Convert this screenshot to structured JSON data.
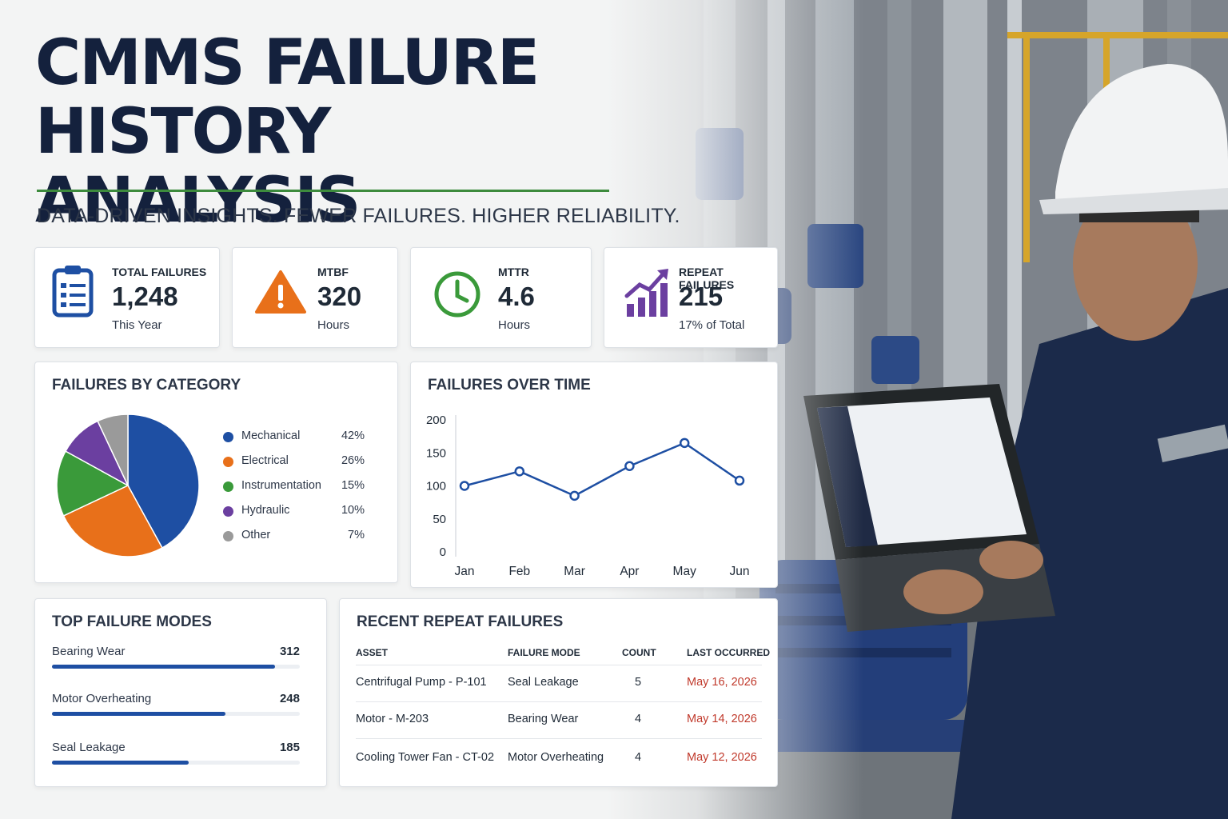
{
  "header": {
    "title_line1": "CMMS FAILURE",
    "title_line2": "HISTORY ANALYSIS",
    "tagline": "DATA-DRIVEN INSIGHTS. FEWER FAILURES. HIGHER RELIABILITY."
  },
  "kpis": [
    {
      "label": "TOTAL FAILURES",
      "value": "1,248",
      "sub": "This Year",
      "icon": "clipboard-list-icon",
      "color": "#1e4fa3"
    },
    {
      "label": "MTBF",
      "value": "320",
      "sub": "Hours",
      "icon": "warning-triangle-icon",
      "color": "#e8701a"
    },
    {
      "label": "MTTR",
      "value": "4.6",
      "sub": "Hours",
      "icon": "clock-icon",
      "color": "#3a9a3a"
    },
    {
      "label": "REPEAT FAILURES",
      "value": "215",
      "sub": "17% of Total",
      "icon": "trending-up-bars-icon",
      "color": "#6b3fa0"
    }
  ],
  "category_card": {
    "title": "FAILURES BY CATEGORY",
    "items": [
      {
        "name": "Mechanical",
        "pct_label": "42%",
        "value": 42,
        "color": "#1e4fa3"
      },
      {
        "name": "Electrical",
        "pct_label": "26%",
        "value": 26,
        "color": "#e8701a"
      },
      {
        "name": "Instrumentation",
        "pct_label": "15%",
        "value": 15,
        "color": "#3a9a3a"
      },
      {
        "name": "Hydraulic",
        "pct_label": "10%",
        "value": 10,
        "color": "#6b3fa0"
      },
      {
        "name": "Other",
        "pct_label": "7%",
        "value": 7,
        "color": "#9a9a9a"
      }
    ]
  },
  "time_card": {
    "title": "FAILURES OVER TIME"
  },
  "chart_data": [
    {
      "type": "pie",
      "title": "FAILURES BY CATEGORY",
      "categories": [
        "Mechanical",
        "Electrical",
        "Instrumentation",
        "Hydraulic",
        "Other"
      ],
      "values": [
        42,
        26,
        15,
        10,
        7
      ],
      "legend": "right"
    },
    {
      "type": "line",
      "title": "FAILURES OVER TIME",
      "categories": [
        "Jan",
        "Feb",
        "Mar",
        "Apr",
        "May",
        "Jun"
      ],
      "values": [
        100,
        122,
        85,
        130,
        165,
        108
      ],
      "yticks": [
        "0",
        "50",
        "100",
        "150",
        "200"
      ],
      "ylim": [
        0,
        200
      ],
      "grid": false,
      "color": "#1e4fa3"
    }
  ],
  "modes_card": {
    "title": "TOP FAILURE MODES",
    "items": [
      {
        "name": "Bearing Wear",
        "count": "312",
        "fraction": 0.9
      },
      {
        "name": "Motor Overheating",
        "count": "248",
        "fraction": 0.7
      },
      {
        "name": "Seal Leakage",
        "count": "185",
        "fraction": 0.55
      }
    ]
  },
  "repeat_card": {
    "title": "RECENT REPEAT FAILURES",
    "columns": [
      "ASSET",
      "FAILURE MODE",
      "COUNT",
      "LAST OCCURRED"
    ],
    "rows": [
      {
        "asset": "Centrifugal Pump - P-101",
        "mode": "Seal Leakage",
        "count": "5",
        "last": "May 16, 2026"
      },
      {
        "asset": "Motor - M-203",
        "mode": "Bearing Wear",
        "count": "4",
        "last": "May 14, 2026"
      },
      {
        "asset": "Cooling Tower Fan - CT-02",
        "mode": "Motor Overheating",
        "count": "4",
        "last": "May 12, 2026"
      }
    ]
  }
}
